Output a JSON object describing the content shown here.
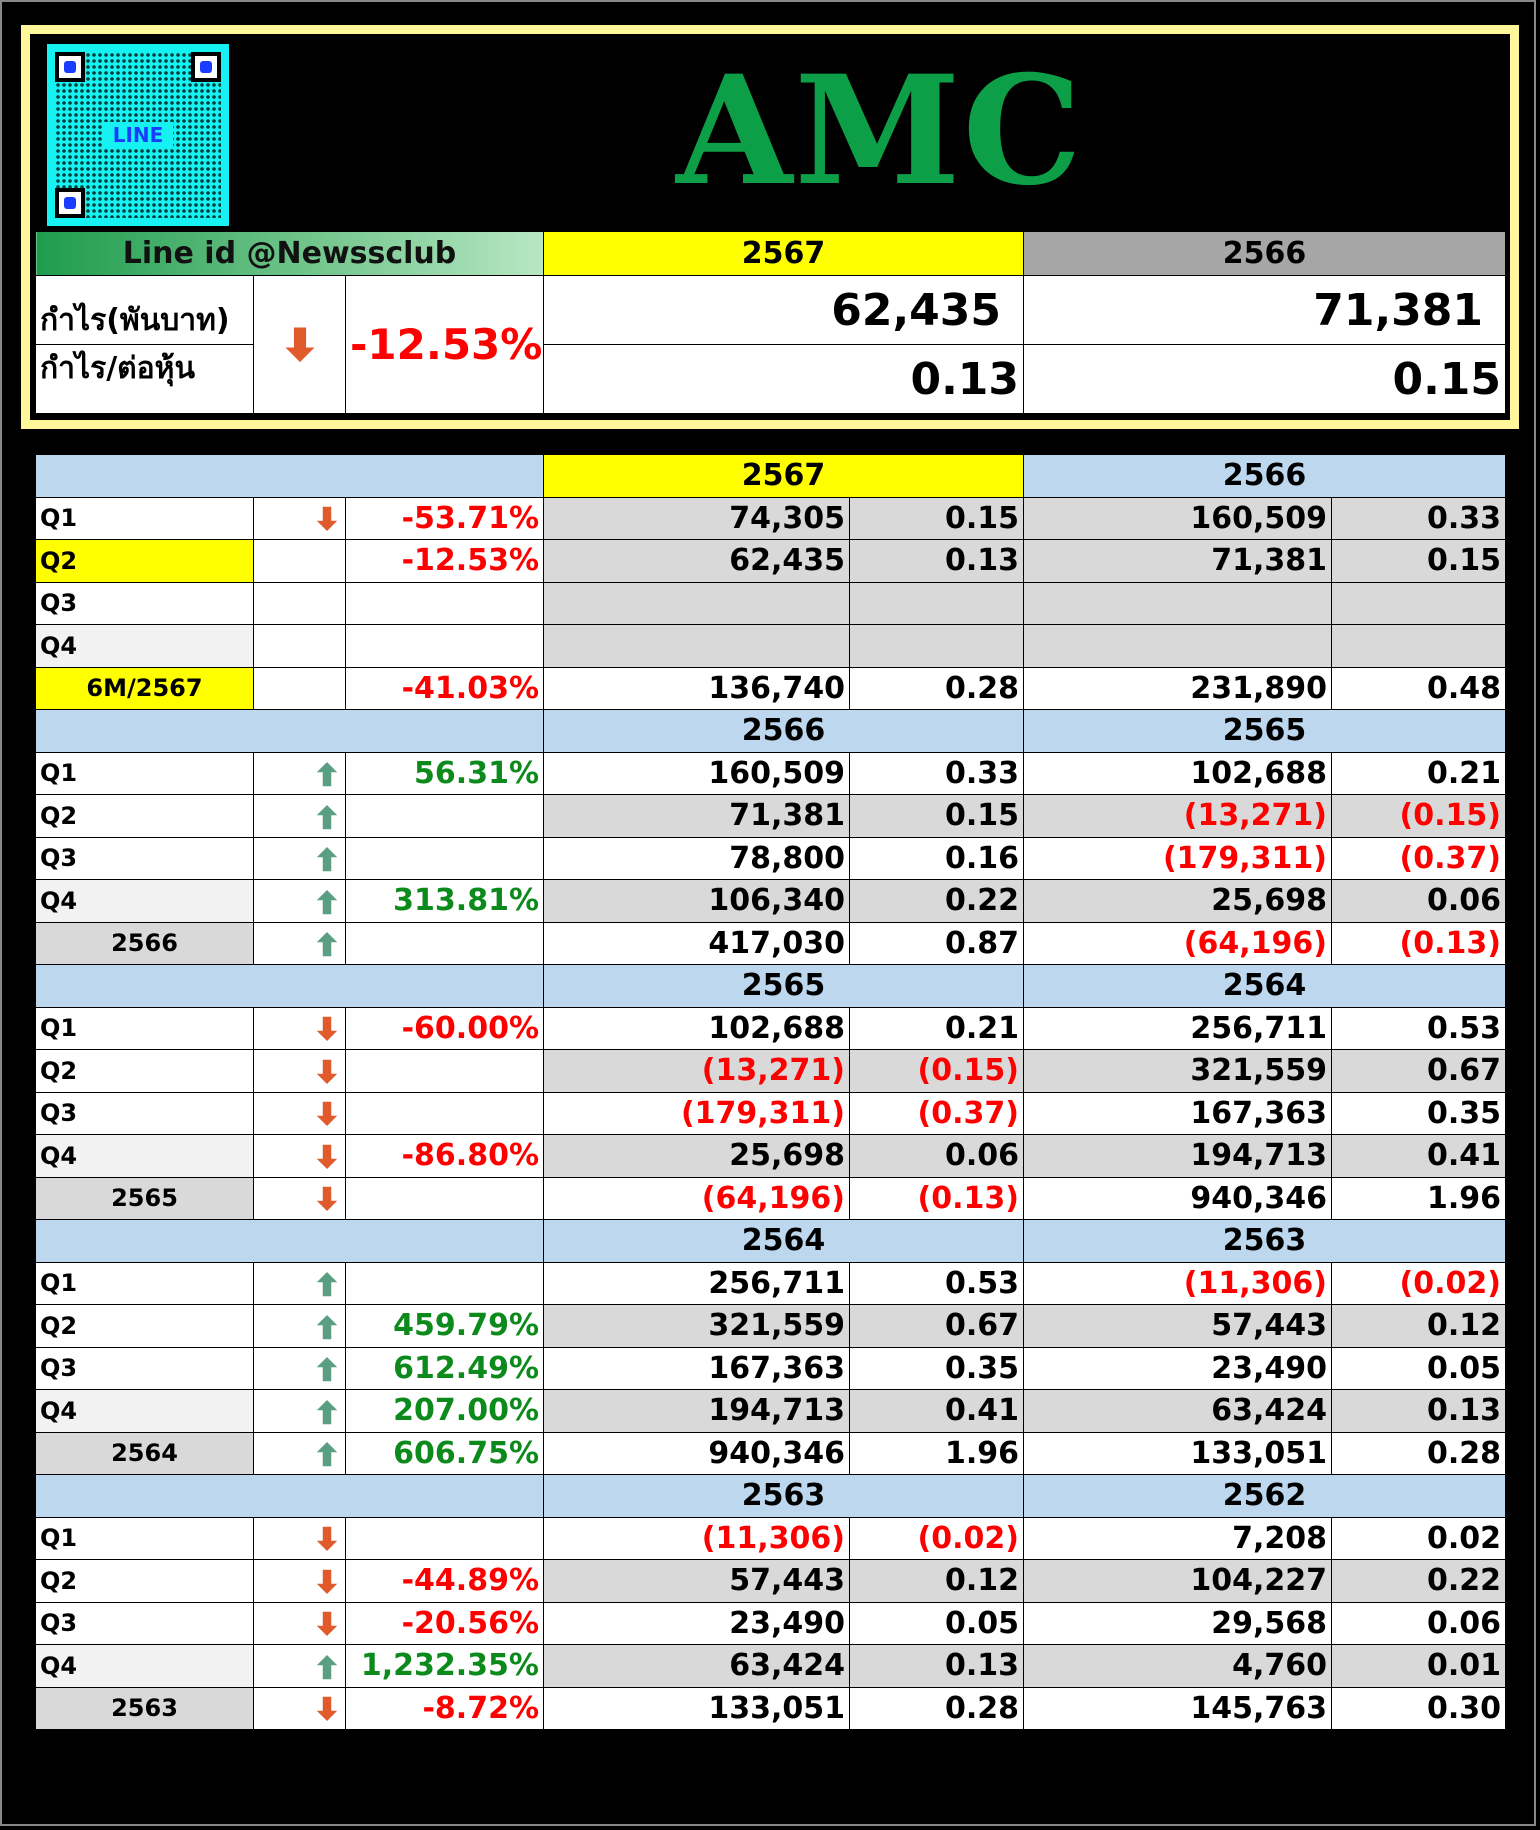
{
  "header": {
    "title": "AMC",
    "qr_label": "LINE",
    "line_id": "Line id @Newssclub",
    "year_current": "2567",
    "year_prev": "2566",
    "profit_label": "กำไร(พันบาท)",
    "eps_label": "กำไร/ต่อหุ้น",
    "change": "-12.53%",
    "change_direction": "down",
    "profit_current": "62,435",
    "profit_prev": "71,381",
    "eps_current": "0.13",
    "eps_prev": "0.15"
  },
  "colors": {
    "up_arrow": "#5a9e84",
    "down_arrow": "#e05a2b",
    "band": "#bdd7ee",
    "highlight": "#ffff00",
    "title_green": "#0d9f47"
  },
  "sections": [
    {
      "year_a": "2567",
      "year_b": "2566",
      "rows": [
        {
          "label": "Q1",
          "dir": "down",
          "pct": "-53.71%",
          "a_profit": "74,305",
          "a_eps": "0.15",
          "b_profit": "160,509",
          "b_eps": "0.33"
        },
        {
          "label": "Q2",
          "dir": "",
          "pct": "-12.53%",
          "a_profit": "62,435",
          "a_eps": "0.13",
          "b_profit": "71,381",
          "b_eps": "0.15"
        },
        {
          "label": "Q3",
          "dir": "",
          "pct": "",
          "a_profit": "",
          "a_eps": "",
          "b_profit": "",
          "b_eps": ""
        },
        {
          "label": "Q4",
          "dir": "",
          "pct": "",
          "a_profit": "",
          "a_eps": "",
          "b_profit": "",
          "b_eps": ""
        },
        {
          "label": "6M/2567",
          "dir": "",
          "pct": "-41.03%",
          "a_profit": "136,740",
          "a_eps": "0.28",
          "b_profit": "231,890",
          "b_eps": "0.48"
        }
      ]
    },
    {
      "year_a": "2566",
      "year_b": "2565",
      "rows": [
        {
          "label": "Q1",
          "dir": "up",
          "pct": "56.31%",
          "a_profit": "160,509",
          "a_eps": "0.33",
          "b_profit": "102,688",
          "b_eps": "0.21"
        },
        {
          "label": "Q2",
          "dir": "up",
          "pct": "",
          "a_profit": "71,381",
          "a_eps": "0.15",
          "b_profit": "(13,271)",
          "b_eps": "(0.15)"
        },
        {
          "label": "Q3",
          "dir": "up",
          "pct": "",
          "a_profit": "78,800",
          "a_eps": "0.16",
          "b_profit": "(179,311)",
          "b_eps": "(0.37)"
        },
        {
          "label": "Q4",
          "dir": "up",
          "pct": "313.81%",
          "a_profit": "106,340",
          "a_eps": "0.22",
          "b_profit": "25,698",
          "b_eps": "0.06"
        },
        {
          "label": "2566",
          "dir": "up",
          "pct": "",
          "a_profit": "417,030",
          "a_eps": "0.87",
          "b_profit": "(64,196)",
          "b_eps": "(0.13)"
        }
      ]
    },
    {
      "year_a": "2565",
      "year_b": "2564",
      "rows": [
        {
          "label": "Q1",
          "dir": "down",
          "pct": "-60.00%",
          "a_profit": "102,688",
          "a_eps": "0.21",
          "b_profit": "256,711",
          "b_eps": "0.53"
        },
        {
          "label": "Q2",
          "dir": "down",
          "pct": "",
          "a_profit": "(13,271)",
          "a_eps": "(0.15)",
          "b_profit": "321,559",
          "b_eps": "0.67"
        },
        {
          "label": "Q3",
          "dir": "down",
          "pct": "",
          "a_profit": "(179,311)",
          "a_eps": "(0.37)",
          "b_profit": "167,363",
          "b_eps": "0.35"
        },
        {
          "label": "Q4",
          "dir": "down",
          "pct": "-86.80%",
          "a_profit": "25,698",
          "a_eps": "0.06",
          "b_profit": "194,713",
          "b_eps": "0.41"
        },
        {
          "label": "2565",
          "dir": "down",
          "pct": "",
          "a_profit": "(64,196)",
          "a_eps": "(0.13)",
          "b_profit": "940,346",
          "b_eps": "1.96"
        }
      ]
    },
    {
      "year_a": "2564",
      "year_b": "2563",
      "rows": [
        {
          "label": "Q1",
          "dir": "up",
          "pct": "",
          "a_profit": "256,711",
          "a_eps": "0.53",
          "b_profit": "(11,306)",
          "b_eps": "(0.02)"
        },
        {
          "label": "Q2",
          "dir": "up",
          "pct": "459.79%",
          "a_profit": "321,559",
          "a_eps": "0.67",
          "b_profit": "57,443",
          "b_eps": "0.12"
        },
        {
          "label": "Q3",
          "dir": "up",
          "pct": "612.49%",
          "a_profit": "167,363",
          "a_eps": "0.35",
          "b_profit": "23,490",
          "b_eps": "0.05"
        },
        {
          "label": "Q4",
          "dir": "up",
          "pct": "207.00%",
          "a_profit": "194,713",
          "a_eps": "0.41",
          "b_profit": "63,424",
          "b_eps": "0.13"
        },
        {
          "label": "2564",
          "dir": "up",
          "pct": "606.75%",
          "a_profit": "940,346",
          "a_eps": "1.96",
          "b_profit": "133,051",
          "b_eps": "0.28"
        }
      ]
    },
    {
      "year_a": "2563",
      "year_b": "2562",
      "rows": [
        {
          "label": "Q1",
          "dir": "down",
          "pct": "",
          "a_profit": "(11,306)",
          "a_eps": "(0.02)",
          "b_profit": "7,208",
          "b_eps": "0.02"
        },
        {
          "label": "Q2",
          "dir": "down",
          "pct": "-44.89%",
          "a_profit": "57,443",
          "a_eps": "0.12",
          "b_profit": "104,227",
          "b_eps": "0.22"
        },
        {
          "label": "Q3",
          "dir": "down",
          "pct": "-20.56%",
          "a_profit": "23,490",
          "a_eps": "0.05",
          "b_profit": "29,568",
          "b_eps": "0.06"
        },
        {
          "label": "Q4",
          "dir": "up",
          "pct": "1,232.35%",
          "a_profit": "63,424",
          "a_eps": "0.13",
          "b_profit": "4,760",
          "b_eps": "0.01"
        },
        {
          "label": "2563",
          "dir": "down",
          "pct": "-8.72%",
          "a_profit": "133,051",
          "a_eps": "0.28",
          "b_profit": "145,763",
          "b_eps": "0.30"
        }
      ]
    }
  ]
}
